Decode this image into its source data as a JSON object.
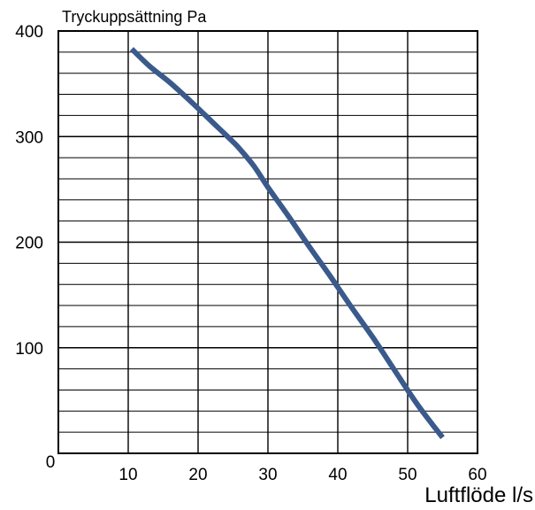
{
  "chart_data": {
    "type": "line",
    "title": "Tryckuppsättning Pa",
    "xlabel": "Luftflöde l/s",
    "ylabel": "Tryckuppsättning Pa",
    "xlim": [
      0,
      60
    ],
    "ylim": [
      0,
      400
    ],
    "x_ticks": [
      0,
      10,
      20,
      30,
      40,
      50,
      60
    ],
    "y_ticks": [
      100,
      200,
      300,
      400
    ],
    "grid": {
      "vertical_step": 10,
      "horizontal_step": 20
    },
    "series": [
      {
        "color": "#3a5a8c",
        "x": [
          10.5,
          13,
          16,
          19,
          22,
          25,
          26,
          28,
          30,
          33,
          36,
          39,
          42,
          45,
          48,
          51,
          53,
          55
        ],
        "y": [
          383,
          367,
          351,
          333,
          314,
          295,
          288,
          272,
          252,
          224,
          195,
          167,
          138,
          110,
          80,
          50,
          32,
          15
        ]
      }
    ]
  },
  "colors": {
    "curve": "#3a5a8c",
    "grid": "#000000",
    "background": "#ffffff"
  }
}
